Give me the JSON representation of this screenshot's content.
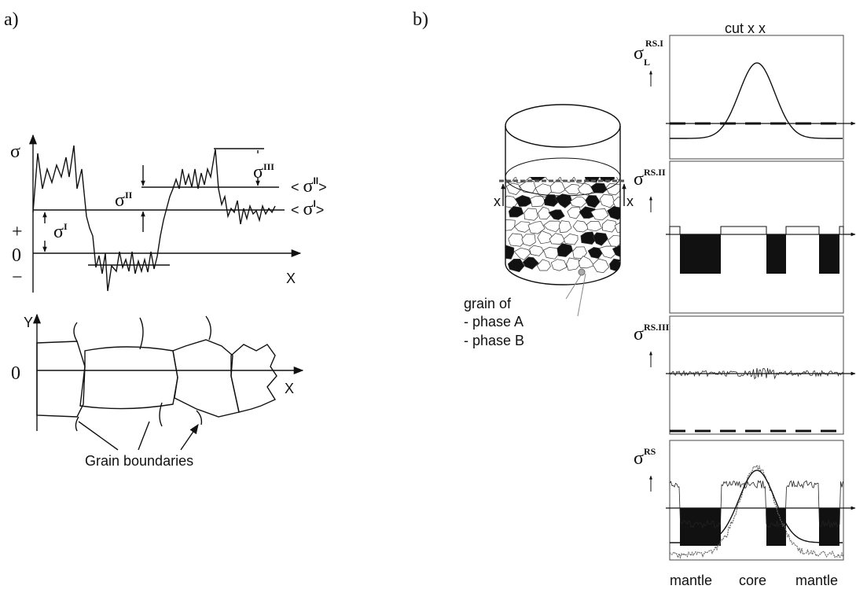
{
  "panel_a": {
    "label": "a)",
    "stress_plot": {
      "axis": "σ",
      "x_axis": "X",
      "plus": "+",
      "zero": "0",
      "minus": "−",
      "sigma_I": {
        "base": "σ",
        "sup": "I"
      },
      "sigma_II": {
        "base": "σ",
        "sup": "II"
      },
      "sigma_III": {
        "base": "σ",
        "sup": "III"
      },
      "mean_II": {
        "open": "< ",
        "base": "σ",
        "sup": "II",
        "close": ">"
      },
      "mean_I": {
        "open": "< ",
        "base": "σ",
        "sup": "I",
        "close": ">"
      }
    },
    "grain_plot": {
      "y_axis": "Y",
      "zero": "0",
      "x_axis": "X",
      "caption": "Grain boundaries"
    }
  },
  "panel_b": {
    "label": "b)",
    "cut": "cut x x",
    "cylinder": {
      "cut_left": "x",
      "cut_right": "x",
      "legend": [
        "grain of",
        "- phase A",
        "- phase B"
      ]
    },
    "profiles": [
      {
        "base": "σ",
        "sub": "L",
        "sup": "RS.I"
      },
      {
        "base": "σ",
        "sup": "RS.II"
      },
      {
        "base": "σ",
        "sup": "RS.III"
      },
      {
        "base": "σ",
        "sup": "RS"
      }
    ],
    "positions": [
      "mantle",
      "core",
      "mantle"
    ]
  }
}
